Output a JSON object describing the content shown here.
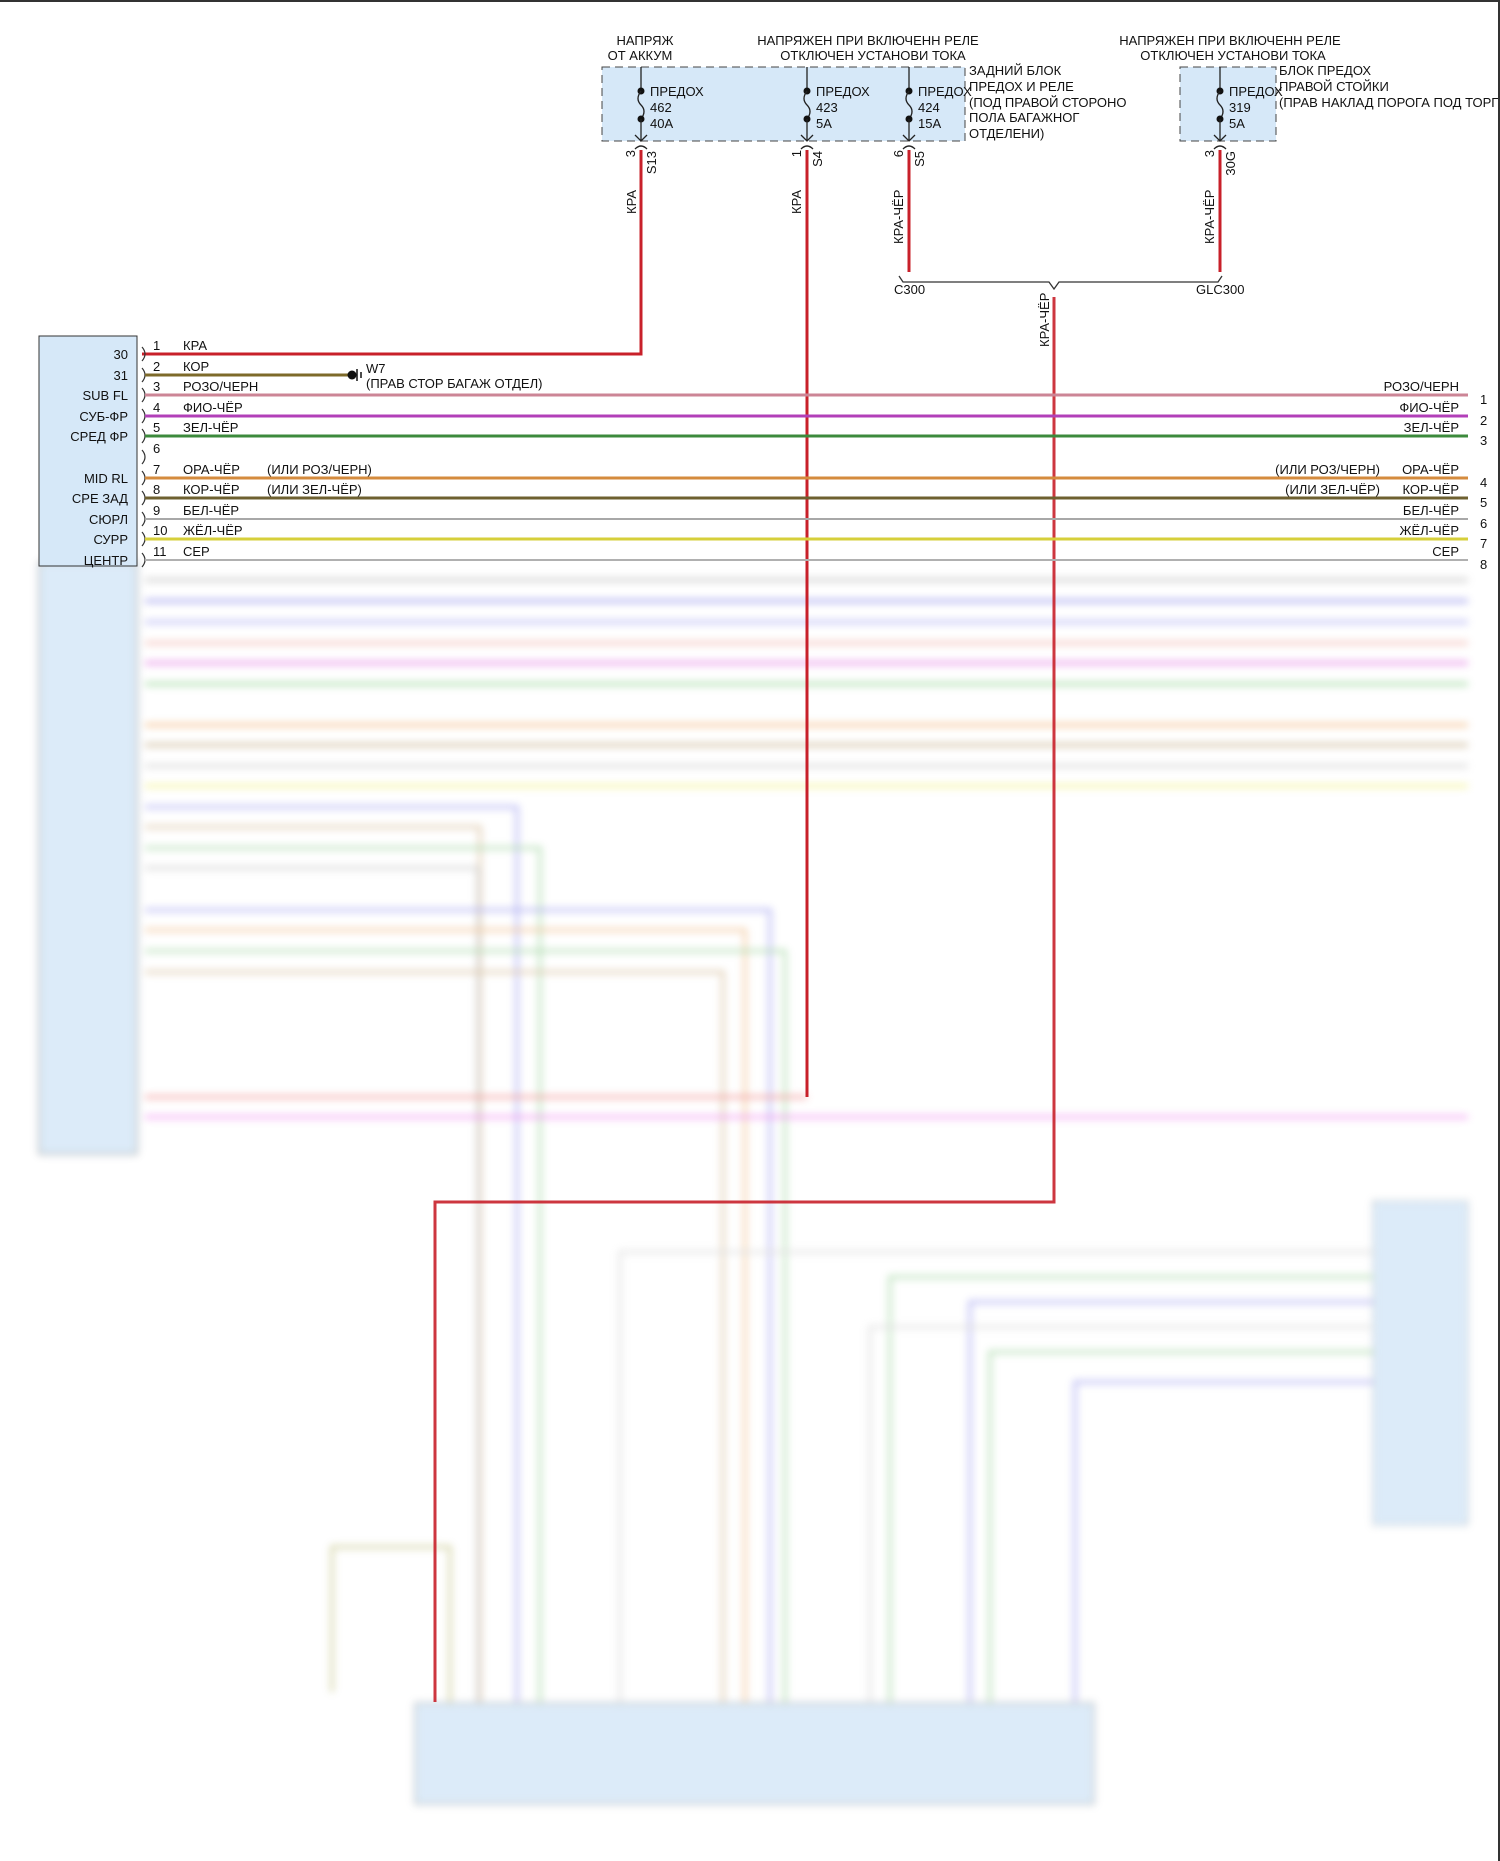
{
  "top_notes": {
    "battery": [
      "НАПРЯЖ",
      "ОТ АККУМ"
    ],
    "relay_a": [
      "НАПРЯЖЕН ПРИ ВКЛЮЧЕНН РЕЛЕ",
      "ОТКЛЮЧЕН УСТАНОВИ ТОКА"
    ],
    "relay_b": [
      "НАПРЯЖЕН ПРИ ВКЛЮЧЕНН РЕЛЕ",
      "ОТКЛЮЧЕН УСТАНОВИ ТОКА"
    ]
  },
  "rear_fuse_box": {
    "label": [
      "ЗАДНИЙ БЛОК",
      "ПРЕДОХ И РЕЛЕ",
      "(ПОД ПРАВОЙ СТОРОНО",
      "ПОЛА БАГАЖНОГ",
      "ОТДЕЛЕНИ)"
    ],
    "fuses": [
      {
        "name": "ПРЕДОХ",
        "number": "462",
        "rating": "40A",
        "pin": "3",
        "terminal": "S13",
        "wire": "КРА"
      },
      {
        "name": "ПРЕДОХ",
        "number": "423",
        "rating": "5A",
        "pin": "1",
        "terminal": "S4",
        "wire": "КРА"
      },
      {
        "name": "ПРЕДОХ",
        "number": "424",
        "rating": "15A",
        "pin": "6",
        "terminal": "S5",
        "wire": "КРА-ЧЁР"
      }
    ]
  },
  "right_pillar_fuse_box": {
    "label": [
      "БЛОК ПРЕДОХ",
      "ПРАВОЙ СТОЙКИ",
      "(ПРАВ НАКЛАД ПОРОГА ПОД ТОРП)"
    ],
    "fuses": [
      {
        "name": "ПРЕДОХ",
        "number": "319",
        "rating": "5A",
        "pin": "3",
        "terminal": "30G",
        "wire": "КРА-ЧЁР"
      }
    ]
  },
  "splice": {
    "left": "C300",
    "right": "GLC300",
    "wire": "КРА-ЧЁР"
  },
  "ground": {
    "id": "W7",
    "location": "(ПРАВ СТОР БАГАЖ ОТДЕЛ)"
  },
  "amp_connector": {
    "pins": [
      {
        "num": "1",
        "func": "30",
        "color": "КРА",
        "alt": "",
        "rnum": "",
        "rcolor": "",
        "ralt": "",
        "hex": "#c8202a"
      },
      {
        "num": "2",
        "func": "31",
        "color": "КОР",
        "alt": "",
        "rnum": "",
        "rcolor": "",
        "ralt": "",
        "hex": "#7d6a2a"
      },
      {
        "num": "3",
        "func": "SUB FL",
        "color": "РОЗО/ЧЕРН",
        "alt": "",
        "rnum": "1",
        "rcolor": "РОЗО/ЧЕРН",
        "ralt": "",
        "hex": "#cc8596"
      },
      {
        "num": "4",
        "func": "СУБ-ФР",
        "color": "ФИО-ЧЁР",
        "alt": "",
        "rnum": "2",
        "rcolor": "ФИО-ЧЁР",
        "ralt": "",
        "hex": "#b23fb8"
      },
      {
        "num": "5",
        "func": "СРЕД ФР",
        "color": "ЗЕЛ-ЧЁР",
        "alt": "",
        "rnum": "3",
        "rcolor": "ЗЕЛ-ЧЁР",
        "ralt": "",
        "hex": "#3c8a3c"
      },
      {
        "num": "6",
        "func": "",
        "color": "",
        "alt": "",
        "rnum": "",
        "rcolor": "",
        "ralt": "",
        "hex": ""
      },
      {
        "num": "7",
        "func": "MID RL",
        "color": "ОРА-ЧЁР",
        "alt": "(ИЛИ РОЗ/ЧЕРН)",
        "rnum": "4",
        "rcolor": "ОРА-ЧЁР",
        "ralt": "(ИЛИ РОЗ/ЧЕРН)",
        "hex": "#d48b3e"
      },
      {
        "num": "8",
        "func": "СРЕ ЗАД",
        "color": "КОР-ЧЁР",
        "alt": "(ИЛИ ЗЕЛ-ЧЁР)",
        "rnum": "5",
        "rcolor": "КОР-ЧЁР",
        "ralt": "(ИЛИ ЗЕЛ-ЧЁР)",
        "hex": "#6e6030"
      },
      {
        "num": "9",
        "func": "СЮРЛ",
        "color": "БЕЛ-ЧЁР",
        "alt": "",
        "rnum": "6",
        "rcolor": "БЕЛ-ЧЁР",
        "ralt": "",
        "hex": "#a8a8a8"
      },
      {
        "num": "10",
        "func": "СУРР",
        "color": "ЖЁЛ-ЧЁР",
        "alt": "",
        "rnum": "7",
        "rcolor": "ЖЁЛ-ЧЁР",
        "ralt": "",
        "hex": "#d6cf3a"
      },
      {
        "num": "11",
        "func": "ЦЕНТР",
        "color": "СЕР",
        "alt": "",
        "rnum": "8",
        "rcolor": "СЕР",
        "ralt": "",
        "hex": "#b0b0b0"
      }
    ]
  },
  "colors": {
    "box_fill": "#d6e8f8",
    "wire_red": "#c8202a"
  }
}
